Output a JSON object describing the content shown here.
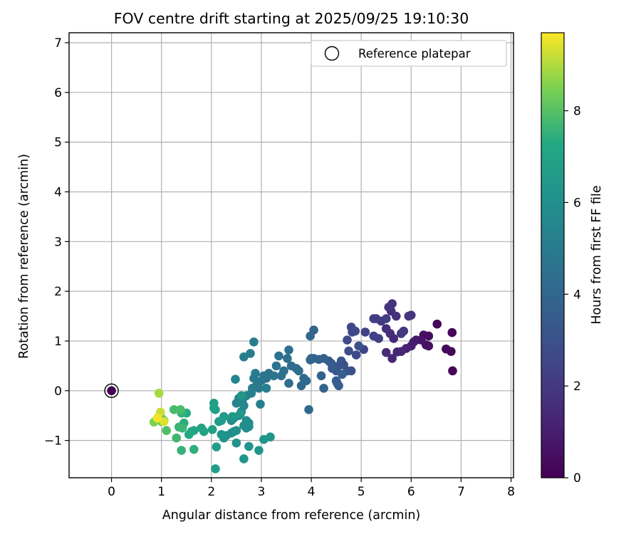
{
  "chart_data": {
    "type": "scatter",
    "title": "FOV centre drift starting at 2025/09/25 19:10:30",
    "xlabel": "Angular distance from reference (arcmin)",
    "ylabel": "Rotation from reference (arcmin)",
    "xlim": [
      -0.85,
      8.05
    ],
    "ylim": [
      -1.75,
      7.2
    ],
    "xticks": [
      0,
      1,
      2,
      3,
      4,
      5,
      6,
      7,
      8
    ],
    "yticks": [
      -1,
      0,
      1,
      2,
      3,
      4,
      5,
      6,
      7
    ],
    "grid": true,
    "legend": {
      "position": "top-right",
      "entries": [
        "Reference platepar"
      ]
    },
    "colorbar": {
      "label": "Hours from first FF file",
      "range": [
        0,
        9.7
      ],
      "ticks": [
        0,
        2,
        4,
        6,
        8
      ],
      "colormap": "viridis"
    },
    "reference_point": {
      "x": 0,
      "y": 0
    },
    "points": [
      [
        0,
        0,
        0
      ],
      [
        6.82,
        1.17,
        0.1
      ],
      [
        6.52,
        1.34,
        0.2
      ],
      [
        6.83,
        0.4,
        0.15
      ],
      [
        6.8,
        0.79,
        0.25
      ],
      [
        6.7,
        0.84,
        0.3
      ],
      [
        6.35,
        1.1,
        0.4
      ],
      [
        6.25,
        1.12,
        0.5
      ],
      [
        6.3,
        0.92,
        0.6
      ],
      [
        6.35,
        0.9,
        0.55
      ],
      [
        6.2,
        1.02,
        0.7
      ],
      [
        6.1,
        1.02,
        0.8
      ],
      [
        6.05,
        0.98,
        0.9
      ],
      [
        6.0,
        0.9,
        1.0
      ],
      [
        5.9,
        0.85,
        1.1
      ],
      [
        5.8,
        0.79,
        1.2
      ],
      [
        5.72,
        0.78,
        1.3
      ],
      [
        5.62,
        0.65,
        1.35
      ],
      [
        5.5,
        0.77,
        1.4
      ],
      [
        5.65,
        1.05,
        1.45
      ],
      [
        5.58,
        1.15,
        1.5
      ],
      [
        5.5,
        1.25,
        1.6
      ],
      [
        5.6,
        1.6,
        1.6
      ],
      [
        5.7,
        1.5,
        1.7
      ],
      [
        5.62,
        1.75,
        1.75
      ],
      [
        5.55,
        1.68,
        1.8
      ],
      [
        5.95,
        1.5,
        1.85
      ],
      [
        6.0,
        1.52,
        1.9
      ],
      [
        5.85,
        1.2,
        1.9
      ],
      [
        5.8,
        1.15,
        2.0
      ],
      [
        5.4,
        1.4,
        2.0
      ],
      [
        5.3,
        1.45,
        2.1
      ],
      [
        5.25,
        1.45,
        2.15
      ],
      [
        5.5,
        1.45,
        2.2
      ],
      [
        5.35,
        1.05,
        2.3
      ],
      [
        5.25,
        1.1,
        2.35
      ],
      [
        5.08,
        1.18,
        2.4
      ],
      [
        5.05,
        0.83,
        2.45
      ],
      [
        4.8,
        1.28,
        2.5
      ],
      [
        4.82,
        1.18,
        2.55
      ],
      [
        4.88,
        1.2,
        2.6
      ],
      [
        4.72,
        1.02,
        2.7
      ],
      [
        4.9,
        0.72,
        2.8
      ],
      [
        4.75,
        0.8,
        2.9
      ],
      [
        4.95,
        0.9,
        3.0
      ],
      [
        4.8,
        0.4,
        3.05
      ],
      [
        4.72,
        0.4,
        3.1
      ],
      [
        4.65,
        0.52,
        3.15
      ],
      [
        4.6,
        0.6,
        3.2
      ],
      [
        4.55,
        0.5,
        3.25
      ],
      [
        4.5,
        0.4,
        3.3
      ],
      [
        4.42,
        0.45,
        3.35
      ],
      [
        4.4,
        0.55,
        3.4
      ],
      [
        4.35,
        0.6,
        3.45
      ],
      [
        4.5,
        0.2,
        3.5
      ],
      [
        4.55,
        0.1,
        3.55
      ],
      [
        4.52,
        0.15,
        3.6
      ],
      [
        4.62,
        0.33,
        3.65
      ],
      [
        4.25,
        0.65,
        3.7
      ],
      [
        4.15,
        0.63,
        3.75
      ],
      [
        4.05,
        0.65,
        3.8
      ],
      [
        4.2,
        0.3,
        3.85
      ],
      [
        4.25,
        0.05,
        3.9
      ],
      [
        4.0,
        0.65,
        3.9
      ],
      [
        3.98,
        0.62,
        4.0
      ],
      [
        4.05,
        1.22,
        4.0
      ],
      [
        3.98,
        1.1,
        4.05
      ],
      [
        3.95,
        -0.38,
        4.1
      ],
      [
        3.8,
        0.1,
        4.1
      ],
      [
        3.9,
        0.2,
        4.15
      ],
      [
        3.85,
        0.25,
        4.2
      ],
      [
        3.75,
        0.4,
        4.25
      ],
      [
        3.7,
        0.45,
        4.3
      ],
      [
        3.6,
        0.5,
        4.3
      ],
      [
        3.55,
        0.15,
        4.35
      ],
      [
        3.55,
        0.82,
        4.4
      ],
      [
        3.52,
        0.65,
        4.4
      ],
      [
        3.45,
        0.4,
        4.45
      ],
      [
        3.35,
        0.7,
        4.5
      ],
      [
        3.4,
        0.3,
        4.5
      ],
      [
        3.3,
        0.5,
        4.55
      ],
      [
        3.25,
        0.3,
        4.6
      ],
      [
        3.15,
        0.35,
        4.65
      ],
      [
        3.1,
        0.25,
        4.7
      ],
      [
        3.05,
        0.3,
        4.75
      ],
      [
        3.0,
        0.2,
        4.8
      ],
      [
        2.95,
        0.05,
        4.85
      ],
      [
        2.9,
        0.1,
        4.9
      ],
      [
        2.85,
        0.25,
        4.95
      ],
      [
        2.88,
        0.35,
        5.0
      ],
      [
        2.82,
        0.05,
        5.05
      ],
      [
        2.85,
        0.98,
        5.05
      ],
      [
        2.78,
        0.75,
        5.1
      ],
      [
        2.65,
        0.68,
        5.15
      ],
      [
        2.98,
        -0.27,
        5.2
      ],
      [
        3.1,
        0.05,
        5.25
      ],
      [
        2.8,
        -0.05,
        5.3
      ],
      [
        2.7,
        -0.1,
        5.35
      ],
      [
        2.55,
        -0.15,
        5.4
      ],
      [
        2.5,
        -0.25,
        5.45
      ],
      [
        2.48,
        0.23,
        5.5
      ],
      [
        2.62,
        -0.2,
        5.5
      ],
      [
        2.65,
        -0.3,
        5.55
      ],
      [
        2.6,
        -0.42,
        5.6
      ],
      [
        2.55,
        -0.5,
        5.65
      ],
      [
        2.45,
        -0.55,
        5.7
      ],
      [
        2.4,
        -0.6,
        5.75
      ],
      [
        2.7,
        -0.6,
        5.8
      ],
      [
        2.75,
        -0.65,
        5.8
      ],
      [
        2.75,
        -0.72,
        5.85
      ],
      [
        2.7,
        -0.75,
        5.9
      ],
      [
        2.65,
        -0.7,
        5.9
      ],
      [
        2.5,
        -0.8,
        5.95
      ],
      [
        2.45,
        -0.82,
        6.0
      ],
      [
        2.4,
        -0.85,
        6.0
      ],
      [
        2.3,
        -0.9,
        6.05
      ],
      [
        2.25,
        -0.95,
        6.1
      ],
      [
        2.2,
        -0.88,
        6.1
      ],
      [
        2.5,
        -1.05,
        6.15
      ],
      [
        2.65,
        -1.37,
        6.2
      ],
      [
        2.75,
        -1.12,
        6.2
      ],
      [
        2.95,
        -1.2,
        6.25
      ],
      [
        3.05,
        -0.98,
        6.3
      ],
      [
        3.18,
        -0.93,
        6.35
      ],
      [
        2.6,
        -0.1,
        6.4
      ],
      [
        2.58,
        -0.47,
        6.45
      ],
      [
        2.42,
        -0.52,
        6.5
      ],
      [
        2.25,
        -0.52,
        6.55
      ],
      [
        2.15,
        -0.62,
        6.6
      ],
      [
        2.2,
        -0.6,
        6.65
      ],
      [
        2.08,
        -1.57,
        6.7
      ],
      [
        2.1,
        -1.13,
        6.7
      ],
      [
        2.05,
        -0.25,
        6.75
      ],
      [
        2.05,
        -0.35,
        6.8
      ],
      [
        2.08,
        -0.38,
        6.85
      ],
      [
        2.02,
        -0.78,
        6.9
      ],
      [
        1.85,
        -0.82,
        6.95
      ],
      [
        1.8,
        -0.75,
        7.0
      ],
      [
        1.65,
        -0.8,
        7.1
      ],
      [
        1.6,
        -0.82,
        7.2
      ],
      [
        1.55,
        -0.88,
        7.3
      ],
      [
        1.5,
        -0.45,
        7.35
      ],
      [
        1.45,
        -0.65,
        7.4
      ],
      [
        1.4,
        -0.45,
        7.5
      ],
      [
        1.65,
        -1.18,
        7.5
      ],
      [
        1.4,
        -1.2,
        7.55
      ],
      [
        1.35,
        -0.73,
        7.6
      ],
      [
        1.42,
        -0.75,
        7.65
      ],
      [
        1.3,
        -0.95,
        7.7
      ],
      [
        1.25,
        -0.38,
        7.8
      ],
      [
        1.38,
        -0.38,
        7.85
      ],
      [
        1.1,
        -0.8,
        7.9
      ],
      [
        1.05,
        -0.6,
        8.0
      ],
      [
        1.0,
        -0.55,
        8.1
      ],
      [
        0.95,
        -0.52,
        8.2
      ],
      [
        1.0,
        -0.62,
        8.3
      ],
      [
        0.85,
        -0.63,
        8.5
      ],
      [
        0.95,
        -0.05,
        8.9
      ],
      [
        0.98,
        -0.43,
        9.2
      ],
      [
        1.05,
        -0.62,
        9.4
      ],
      [
        0.92,
        -0.55,
        9.6
      ]
    ]
  }
}
